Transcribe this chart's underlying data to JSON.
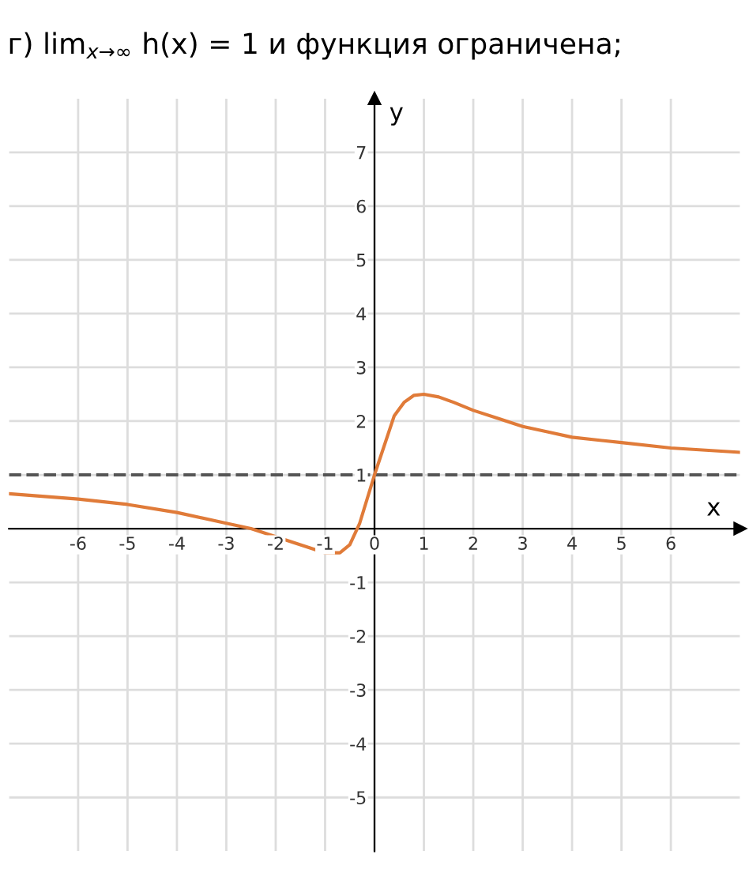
{
  "chart_data": {
    "type": "line",
    "title": "г) lim$_{x→∞}$ h(x) = 1 и функция ограничена;",
    "xlabel": "x",
    "ylabel": "y",
    "x": [
      -7.4,
      -6,
      -5,
      -4,
      -3,
      -2.5,
      -2,
      -1.5,
      -1,
      -0.7,
      -0.5,
      -0.3,
      0,
      0.4,
      0.6,
      0.8,
      1,
      1.3,
      1.6,
      2,
      2.5,
      3,
      3.5,
      4,
      5,
      6,
      7.4
    ],
    "series": [
      {
        "color": "#e07b39",
        "values": [
          0.65,
          0.55,
          0.45,
          0.3,
          0.1,
          0,
          -0.15,
          -0.3,
          -0.45,
          -0.45,
          -0.3,
          0.1,
          1,
          2.1,
          2.35,
          2.48,
          2.5,
          2.45,
          2.35,
          2.2,
          2.05,
          1.9,
          1.8,
          1.7,
          1.6,
          1.5,
          1.42
        ]
      }
    ],
    "xlim": [
      -7.4,
      7.4
    ],
    "ylim": [
      -6,
      8
    ],
    "xticks": [
      -6,
      -5,
      -4,
      -3,
      -2,
      -1,
      0,
      1,
      2,
      3,
      4,
      5,
      6
    ],
    "yticks": [
      -5,
      -4,
      -3,
      -2,
      -1,
      1,
      2,
      3,
      4,
      5,
      6,
      7
    ],
    "grid": true,
    "marker": "none",
    "line_style": "solid",
    "ref_lines": [
      {
        "axis": "y",
        "value": 1,
        "color": "#555555",
        "line_style": "dashed"
      }
    ]
  }
}
